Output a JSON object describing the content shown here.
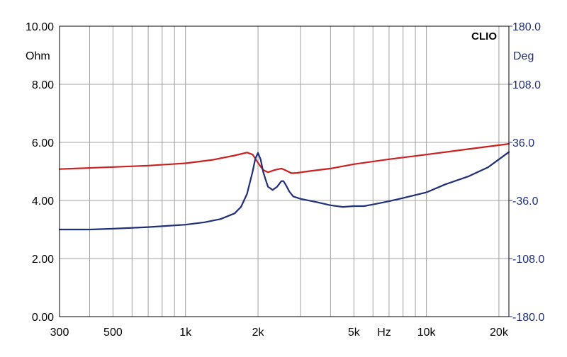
{
  "chart_data": {
    "type": "line",
    "brand": "CLIO",
    "x_scale": "log",
    "x_unit": "Hz",
    "xlim": [
      300,
      22000
    ],
    "x_ticks": [
      {
        "value": 300,
        "label": "300"
      },
      {
        "value": 500,
        "label": "500"
      },
      {
        "value": 1000,
        "label": "1k"
      },
      {
        "value": 2000,
        "label": "2k"
      },
      {
        "value": 5000,
        "label": "5k"
      },
      {
        "value": 10000,
        "label": "10k"
      },
      {
        "value": 20000,
        "label": "20k"
      }
    ],
    "y_left": {
      "unit": "Ohm",
      "lim": [
        0,
        10
      ],
      "ticks": [
        {
          "value": 0,
          "label": "0.00"
        },
        {
          "value": 2,
          "label": "2.00"
        },
        {
          "value": 4,
          "label": "4.00"
        },
        {
          "value": 6,
          "label": "6.00"
        },
        {
          "value": 8,
          "label": "8.00"
        },
        {
          "value": 10,
          "label": "10.00"
        }
      ],
      "color": "#000000"
    },
    "y_right": {
      "unit": "Deg",
      "lim": [
        -180,
        180
      ],
      "ticks": [
        {
          "value": -180,
          "label": "-180.0"
        },
        {
          "value": -108,
          "label": "-108.0"
        },
        {
          "value": -36,
          "label": "-36.0"
        },
        {
          "value": 36,
          "label": "36.0"
        },
        {
          "value": 108,
          "label": "108.0"
        },
        {
          "value": 180,
          "label": "180.0"
        }
      ],
      "color": "#1f2f7a"
    },
    "grid": true,
    "series": [
      {
        "color": "#cc1f1f",
        "axis": "left",
        "x": [
          300,
          400,
          500,
          700,
          1000,
          1300,
          1600,
          1800,
          1900,
          2000,
          2100,
          2200,
          2350,
          2500,
          2600,
          2750,
          2900,
          3200,
          4000,
          5000,
          7000,
          10000,
          15000,
          22000
        ],
        "y": [
          5.08,
          5.12,
          5.15,
          5.2,
          5.28,
          5.4,
          5.55,
          5.65,
          5.58,
          5.3,
          5.05,
          4.97,
          5.05,
          5.1,
          5.04,
          4.94,
          4.95,
          5.0,
          5.1,
          5.25,
          5.42,
          5.58,
          5.77,
          5.95
        ]
      },
      {
        "color": "#1f2f7a",
        "axis": "right",
        "x": [
          300,
          400,
          500,
          700,
          1000,
          1200,
          1400,
          1600,
          1700,
          1800,
          1900,
          1950,
          2000,
          2050,
          2100,
          2150,
          2200,
          2300,
          2400,
          2500,
          2550,
          2600,
          2700,
          2800,
          3000,
          3500,
          4000,
          4500,
          5000,
          5500,
          6000,
          7000,
          8000,
          10000,
          12000,
          15000,
          18000,
          22000
        ],
        "y": [
          -72,
          -72,
          -71,
          -69,
          -66,
          -63,
          -59,
          -52,
          -44,
          -28,
          0,
          16,
          23,
          15,
          0,
          -10,
          -19,
          -23,
          -19,
          -12,
          -12,
          -16,
          -25,
          -31,
          -34,
          -38,
          -42,
          -44,
          -43,
          -43,
          -41,
          -37,
          -33,
          -26,
          -16,
          -6,
          5,
          24
        ]
      }
    ]
  }
}
